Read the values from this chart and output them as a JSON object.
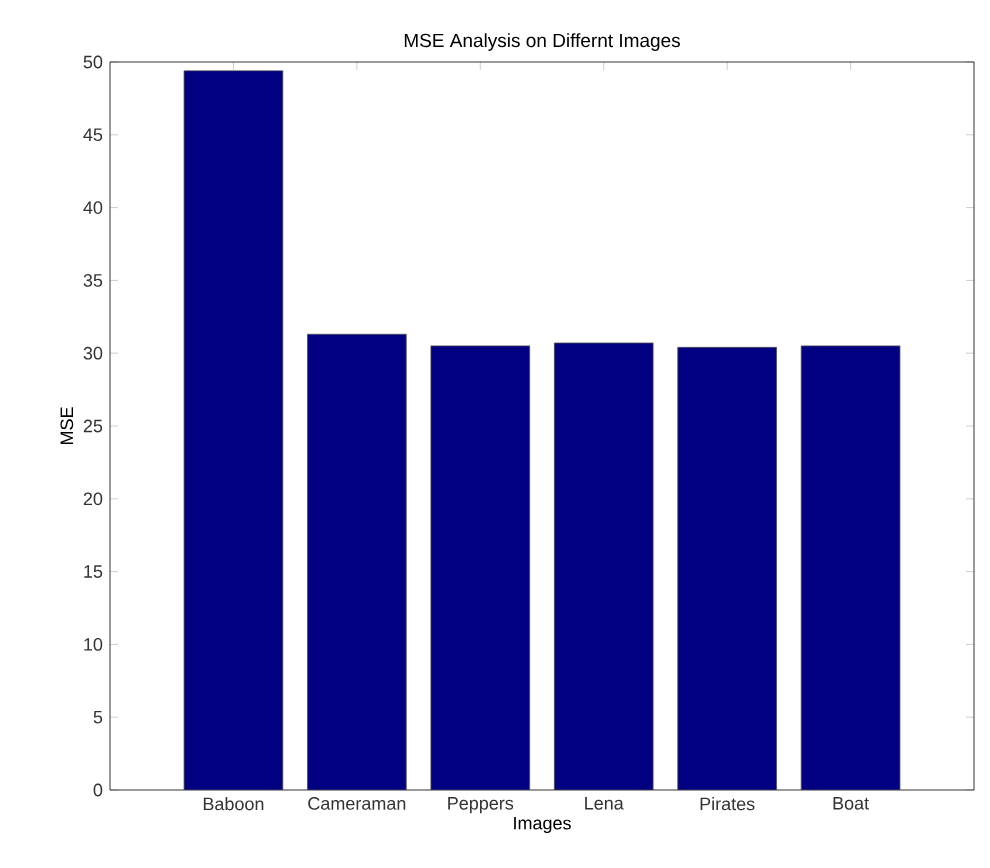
{
  "chart_data": {
    "type": "bar",
    "title": "MSE Analysis on Differnt Images",
    "xlabel": "Images",
    "ylabel": "MSE",
    "categories": [
      "Baboon",
      "Cameraman",
      "Peppers",
      "Lena",
      "Pirates",
      "Boat"
    ],
    "values": [
      49.4,
      31.3,
      30.5,
      30.7,
      30.4,
      30.5
    ],
    "color": "#000080",
    "ylim": [
      0,
      50
    ],
    "yticks": [
      0,
      5,
      10,
      15,
      20,
      25,
      30,
      35,
      40,
      45,
      50
    ],
    "grid": false
  }
}
